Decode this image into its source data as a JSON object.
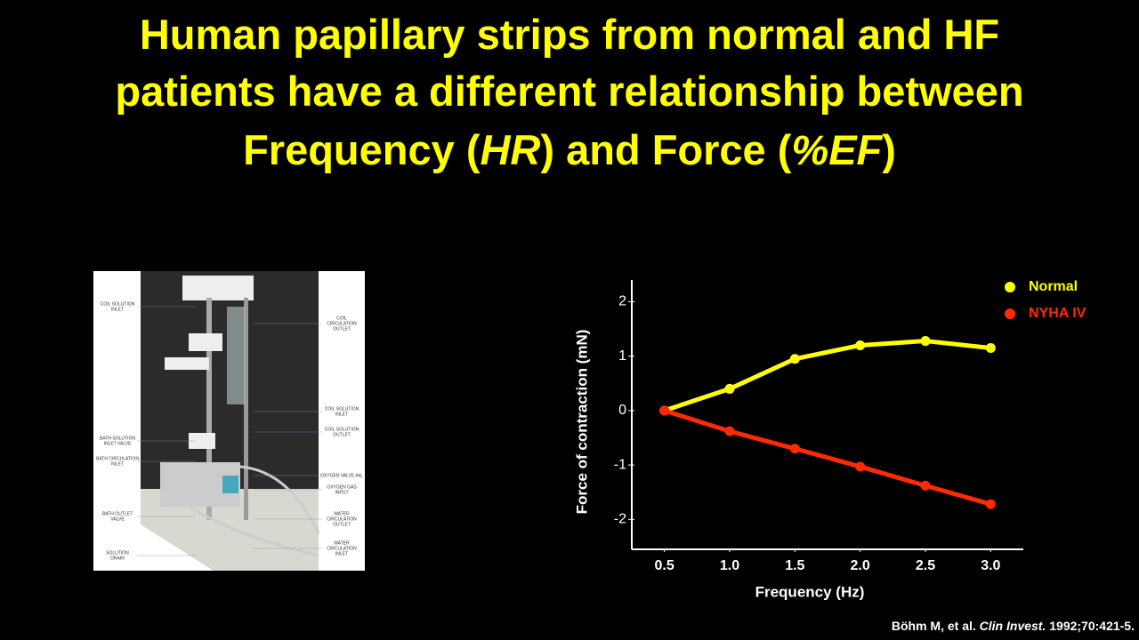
{
  "slide": {
    "title_lines": [
      [
        "Human papillary strips from normal and HF"
      ],
      [
        "patients have a different relationship between"
      ],
      [
        "Frequency (",
        "HR",
        ") and Force (",
        "%EF",
        ")"
      ]
    ],
    "citation": [
      "Böhm M, et al. ",
      "Clin Invest.",
      " 1992;70:421-5."
    ]
  },
  "photo": {
    "left_labels": [
      [
        "COIL SOLUTION",
        "INLET"
      ],
      [
        "BATH SOLUTION",
        "INLET VALVE"
      ],
      [
        "BATH CIRCULATION",
        "INLET"
      ],
      [
        "BATH OUTLET",
        "VALVE"
      ],
      [
        "SOLUTION",
        "DRAIN"
      ]
    ],
    "right_labels": [
      [
        "COIL",
        "CIRCULATION",
        "OUTLET"
      ],
      [
        "COIL SOLUTION",
        "INLET"
      ],
      [
        "COIL SOLUTION",
        "OUTLET"
      ],
      [
        "OXYGEN VALVE Adj."
      ],
      [
        "OXYGEN GAS",
        "INPUT"
      ],
      [
        "WATER",
        "CIRCULATION",
        "OUTLET"
      ],
      [
        "WATER",
        "CIRCULATION",
        "INLET"
      ]
    ]
  },
  "chart_data": {
    "type": "line",
    "x_label": "Frequency (Hz)",
    "y_label": "Force of contraction (mN)",
    "x": [
      0.5,
      1,
      1.5,
      2,
      2.5,
      3
    ],
    "series": [
      {
        "name": "Normal",
        "color": "#ffff00",
        "values": [
          0,
          0.4,
          0.95,
          1.2,
          1.28,
          1.15
        ]
      },
      {
        "name": "NYHA IV",
        "color": "#ff2a00",
        "values": [
          0,
          -0.38,
          -0.7,
          -1.03,
          -1.38,
          -1.72
        ]
      }
    ],
    "xlim": [
      0.25,
      3.25
    ],
    "xticks": [
      0.5,
      {
        "value": 1,
        "label": "1.0"
      },
      1.5,
      {
        "value": 2,
        "label": "2.0"
      },
      2.5,
      {
        "value": 3,
        "label": "3.0"
      }
    ],
    "ylim": [
      -2.55,
      2.4
    ],
    "yticks": [
      -2,
      -1,
      0,
      1,
      2
    ],
    "grid": false,
    "legend": "upper right"
  }
}
